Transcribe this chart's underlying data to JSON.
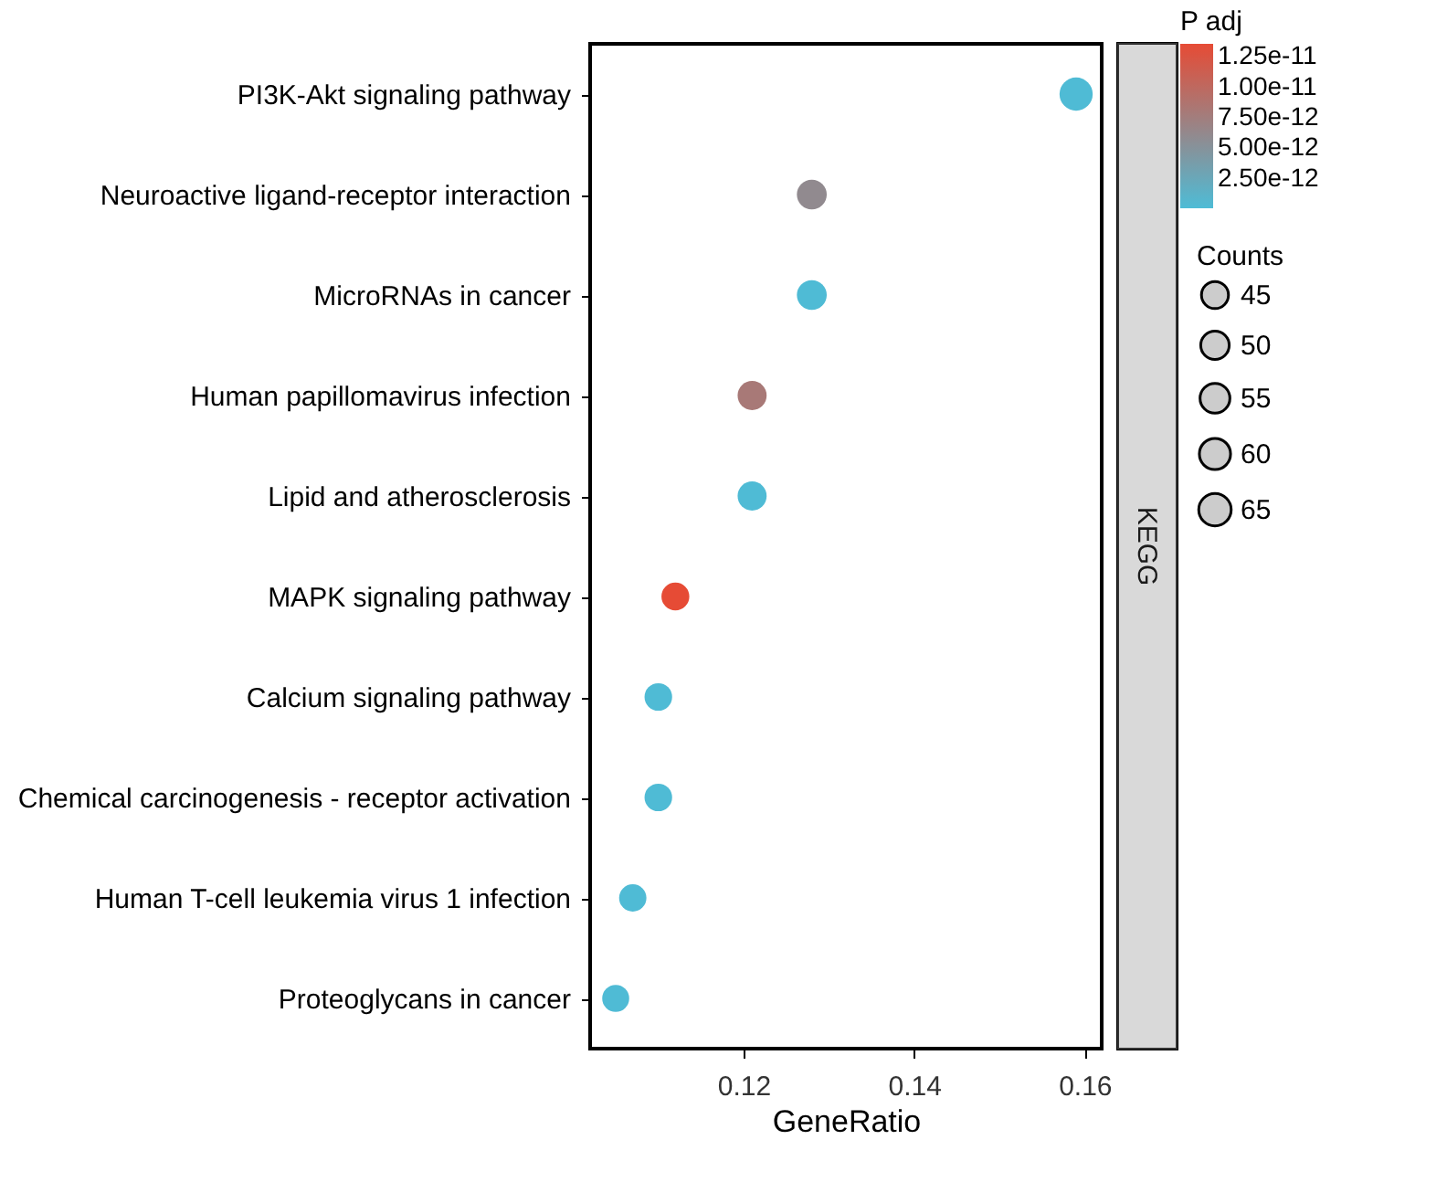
{
  "chart_data": {
    "type": "scatter",
    "xlabel": "GeneRatio",
    "clabel": "P adj",
    "legend_title": "Counts",
    "categories": [
      "PI3K-Akt signaling pathway",
      "Neuroactive ligand-receptor interaction",
      "MicroRNAs in cancer",
      "Human papillomavirus infection",
      "Lipid and atherosclerosis",
      "MAPK signaling pathway",
      "Calcium signaling pathway",
      "Chemical carcinogenesis - receptor activation",
      "Human T-cell leukemia virus 1 infection",
      "Proteoglycans in cancer"
    ],
    "orientation": "horizontal",
    "values": [
      0.159,
      0.128,
      0.128,
      0.121,
      0.121,
      0.112,
      0.11,
      0.11,
      0.107,
      0.105
    ],
    "sizes": [
      68,
      55,
      55,
      52,
      52,
      48,
      47,
      47,
      46,
      45
    ],
    "size_legend": [
      45,
      50,
      55,
      60,
      65
    ],
    "cvalues": [
      1e-13,
      6e-12,
      1e-13,
      8e-12,
      1e-13,
      1.35e-11,
      1e-13,
      1e-13,
      1e-13,
      1e-13
    ],
    "clim": [
      1e-14,
      1.35e-11
    ],
    "cticks": [
      {
        "value": 2.5e-12,
        "label": "2.50e-12"
      },
      {
        "value": 5e-12,
        "label": "5.00e-12"
      },
      {
        "value": 7.5e-12,
        "label": "7.50e-12"
      },
      {
        "value": 1e-11,
        "label": "1.00e-11"
      },
      1.25e-11
    ],
    "xlim": [
      0.102,
      0.162
    ],
    "xticks": [
      0.12,
      0.14,
      0.16
    ],
    "annotations": [
      "KEGG"
    ],
    "grid": false
  }
}
